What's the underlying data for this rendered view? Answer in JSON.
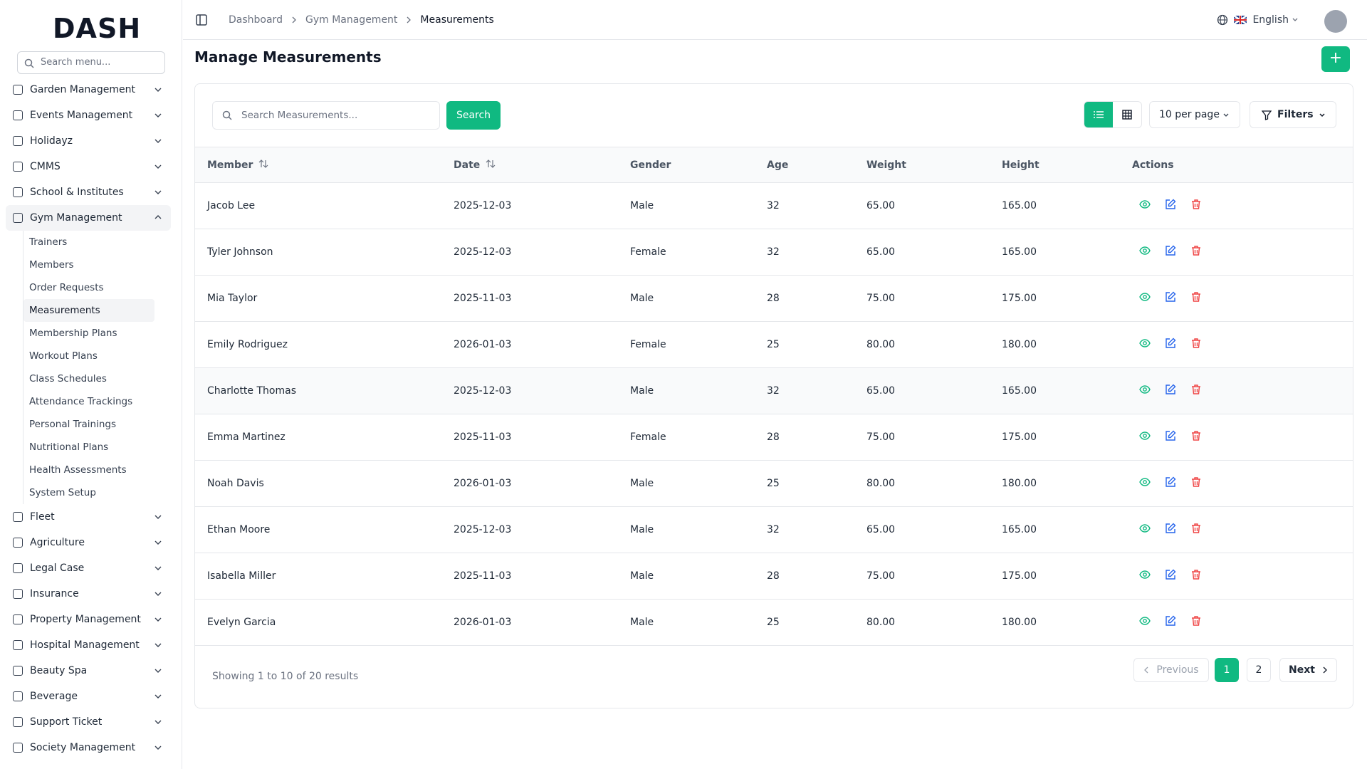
{
  "sidebar": {
    "logo": "DASH",
    "search_placeholder": "Search menu...",
    "menu": [
      {
        "label": "Garden Management"
      },
      {
        "label": "Events Management"
      },
      {
        "label": "Holidayz"
      },
      {
        "label": "CMMS"
      },
      {
        "label": "School & Institutes"
      },
      {
        "label": "Gym Management",
        "expanded": true,
        "children": [
          {
            "label": "Trainers"
          },
          {
            "label": "Members"
          },
          {
            "label": "Order Requests"
          },
          {
            "label": "Measurements",
            "active": true
          },
          {
            "label": "Membership Plans"
          },
          {
            "label": "Workout Plans"
          },
          {
            "label": "Class Schedules"
          },
          {
            "label": "Attendance Trackings"
          },
          {
            "label": "Personal Trainings"
          },
          {
            "label": "Nutritional Plans"
          },
          {
            "label": "Health Assessments"
          },
          {
            "label": "System Setup"
          }
        ]
      },
      {
        "label": "Fleet"
      },
      {
        "label": "Agriculture"
      },
      {
        "label": "Legal Case"
      },
      {
        "label": "Insurance"
      },
      {
        "label": "Property Management"
      },
      {
        "label": "Hospital Management"
      },
      {
        "label": "Beauty Spa"
      },
      {
        "label": "Beverage"
      },
      {
        "label": "Support Ticket"
      },
      {
        "label": "Society Management"
      }
    ]
  },
  "header": {
    "breadcrumbs": [
      "Dashboard",
      "Gym Management",
      "Measurements"
    ],
    "language": "English"
  },
  "page": {
    "title": "Manage Measurements"
  },
  "toolbar": {
    "search_placeholder": "Search Measurements...",
    "search_button": "Search",
    "per_page": "10 per page",
    "filters": "Filters"
  },
  "table": {
    "columns": [
      "Member",
      "Date",
      "Gender",
      "Age",
      "Weight",
      "Height",
      "Actions"
    ],
    "rows": [
      [
        "Jacob Lee",
        "2025-12-03",
        "Male",
        "32",
        "65.00",
        "165.00"
      ],
      [
        "Tyler Johnson",
        "2025-12-03",
        "Female",
        "32",
        "65.00",
        "165.00"
      ],
      [
        "Mia Taylor",
        "2025-11-03",
        "Male",
        "28",
        "75.00",
        "175.00"
      ],
      [
        "Emily Rodriguez",
        "2026-01-03",
        "Female",
        "25",
        "80.00",
        "180.00"
      ],
      [
        "Charlotte Thomas",
        "2025-12-03",
        "Male",
        "32",
        "65.00",
        "165.00"
      ],
      [
        "Emma Martinez",
        "2025-11-03",
        "Female",
        "28",
        "75.00",
        "175.00"
      ],
      [
        "Noah Davis",
        "2026-01-03",
        "Male",
        "25",
        "80.00",
        "180.00"
      ],
      [
        "Ethan Moore",
        "2025-12-03",
        "Male",
        "32",
        "65.00",
        "165.00"
      ],
      [
        "Isabella Miller",
        "2025-11-03",
        "Male",
        "28",
        "75.00",
        "175.00"
      ],
      [
        "Evelyn Garcia",
        "2026-01-03",
        "Male",
        "25",
        "80.00",
        "180.00"
      ]
    ]
  },
  "pagination": {
    "summary": "Showing 1 to 10 of 20 results",
    "previous": "Previous",
    "pages": [
      "1",
      "2"
    ],
    "next": "Next"
  }
}
